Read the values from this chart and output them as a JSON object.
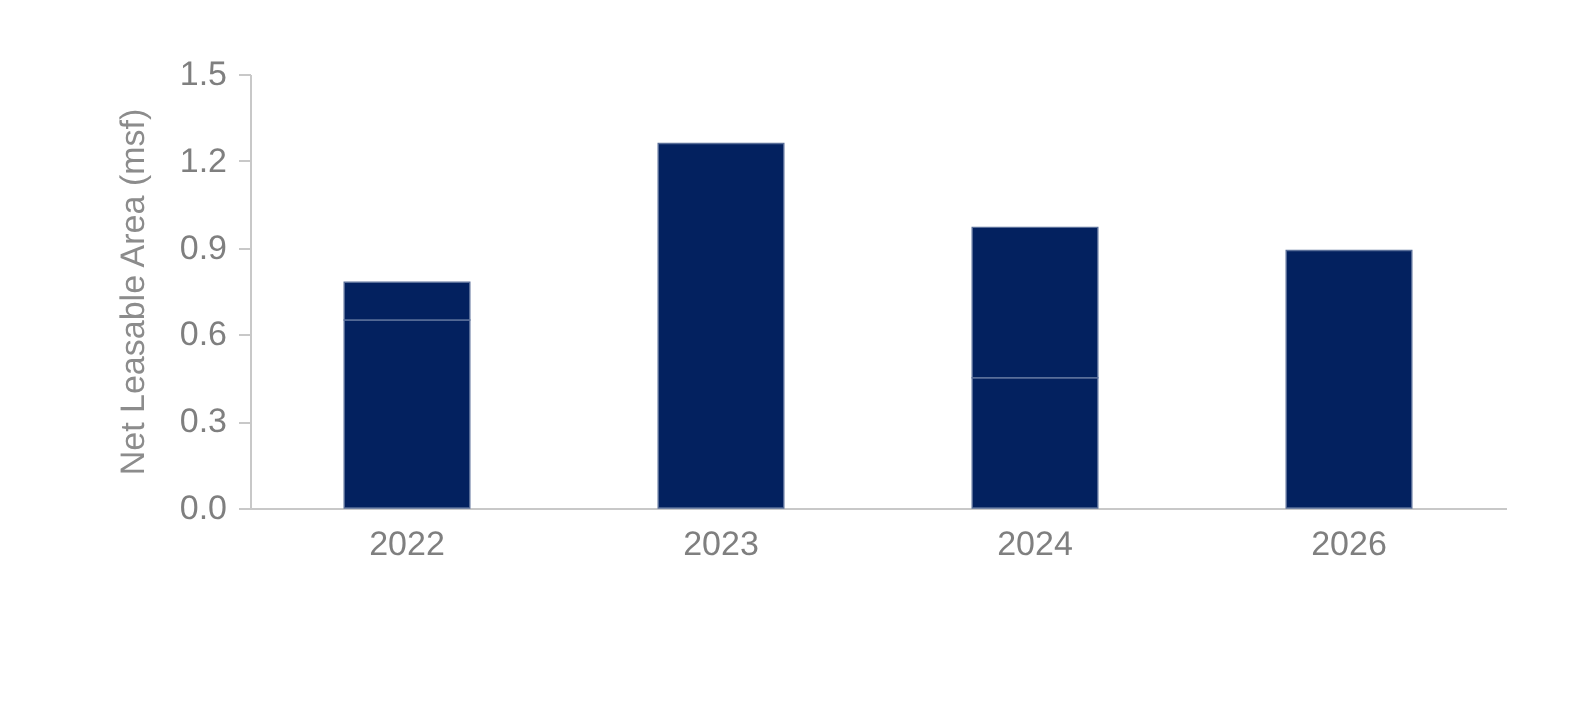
{
  "chart_data": {
    "type": "bar",
    "stacked": true,
    "ylabel": "Net Leasable Area (msf)",
    "categories": [
      "2022",
      "2023",
      "2024",
      "2026"
    ],
    "series": [
      {
        "color": "#03215f",
        "values": [
          0.65,
          1.26,
          0.45,
          0.89
        ]
      },
      {
        "color": "#03215f",
        "values": [
          0.13,
          null,
          0.52,
          null
        ]
      }
    ],
    "ylim": [
      0,
      1.5
    ],
    "yticks": [
      {
        "value": 0,
        "label": "0.0"
      },
      {
        "value": 0.3,
        "label": "0.3"
      },
      {
        "value": 0.6,
        "label": "0.6"
      },
      {
        "value": 0.9,
        "label": "0.9"
      },
      {
        "value": 1.2,
        "label": "1.2"
      },
      {
        "value": 1.5,
        "label": "1.5"
      }
    ],
    "grid": false
  }
}
